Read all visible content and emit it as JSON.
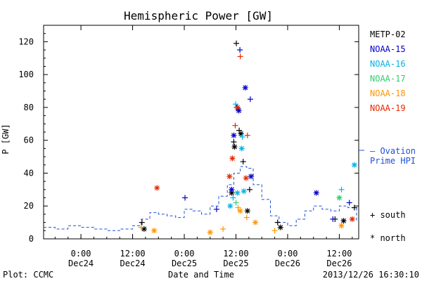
{
  "chart_data": {
    "type": "scatter",
    "title": "Hemispheric Power [GW]",
    "ylabel": "P [GW]",
    "xlabel": "Date and Time",
    "ylim": [
      0,
      130
    ],
    "xlim": [
      "2013-12-23T15:20",
      "2013-12-26T16:30"
    ],
    "y_ticks": [
      0,
      20,
      40,
      60,
      80,
      100,
      120
    ],
    "x_ticks": [
      {
        "x": "2013-12-24T00:00",
        "time": "0:00",
        "date": "Dec24"
      },
      {
        "x": "2013-12-24T12:00",
        "time": "12:00",
        "date": "Dec24"
      },
      {
        "x": "2013-12-25T00:00",
        "time": "0:00",
        "date": "Dec25"
      },
      {
        "x": "2013-12-25T12:00",
        "time": "12:00",
        "date": "Dec25"
      },
      {
        "x": "2013-12-26T00:00",
        "time": "0:00",
        "date": "Dec26"
      },
      {
        "x": "2013-12-26T12:00",
        "time": "12:00",
        "date": "Dec26"
      }
    ],
    "legend": {
      "position": "right",
      "marker_south": "+ south",
      "marker_north": "* north"
    },
    "series": [
      {
        "name": "METP-02",
        "color": "#000000",
        "south": [
          [
            "2013-12-24T14:10",
            10
          ],
          [
            "2013-12-25T11:30",
            59
          ],
          [
            "2013-12-25T12:05",
            119
          ],
          [
            "2013-12-25T12:45",
            66
          ],
          [
            "2013-12-25T13:40",
            47
          ],
          [
            "2013-12-25T15:10",
            30
          ],
          [
            "2013-12-25T21:40",
            10
          ],
          [
            "2013-12-26T11:00",
            12
          ],
          [
            "2013-12-26T15:30",
            19
          ]
        ],
        "north": [
          [
            "2013-12-24T14:40",
            6
          ],
          [
            "2013-12-25T11:00",
            28
          ],
          [
            "2013-12-25T11:40",
            56
          ],
          [
            "2013-12-25T12:30",
            79
          ],
          [
            "2013-12-25T13:10",
            64
          ],
          [
            "2013-12-25T14:40",
            17
          ],
          [
            "2013-12-25T22:20",
            7
          ],
          [
            "2013-12-26T13:00",
            11
          ]
        ]
      },
      {
        "name": "NOAA-15",
        "color": "#0000c8",
        "south": [
          [
            "2013-12-25T00:10",
            25
          ],
          [
            "2013-12-25T07:30",
            18
          ],
          [
            "2013-12-25T12:10",
            80
          ],
          [
            "2013-12-25T12:55",
            115
          ],
          [
            "2013-12-25T15:20",
            85
          ],
          [
            "2013-12-26T10:30",
            12
          ],
          [
            "2013-12-26T14:20",
            22
          ]
        ],
        "north": [
          [
            "2013-12-25T11:00",
            30
          ],
          [
            "2013-12-25T11:30",
            63
          ],
          [
            "2013-12-25T12:40",
            78
          ],
          [
            "2013-12-25T14:10",
            92
          ],
          [
            "2013-12-25T15:30",
            38
          ],
          [
            "2013-12-26T06:40",
            28
          ]
        ]
      },
      {
        "name": "NOAA-16",
        "color": "#00b4e6",
        "south": [
          [
            "2013-12-25T11:20",
            25
          ],
          [
            "2013-12-25T11:55",
            82
          ],
          [
            "2013-12-25T13:30",
            62
          ],
          [
            "2013-12-26T12:30",
            30
          ]
        ],
        "north": [
          [
            "2013-12-25T10:40",
            20
          ],
          [
            "2013-12-25T12:20",
            28
          ],
          [
            "2013-12-25T13:20",
            55
          ],
          [
            "2013-12-25T13:50",
            29
          ],
          [
            "2013-12-26T15:30",
            45
          ]
        ]
      },
      {
        "name": "NOAA-17",
        "color": "#32cd6e",
        "south": [
          [
            "2013-12-25T12:00",
            22
          ]
        ],
        "north": [
          [
            "2013-12-26T12:00",
            25
          ]
        ]
      },
      {
        "name": "NOAA-18",
        "color": "#ff9600",
        "south": [
          [
            "2013-12-24T14:00",
            7
          ],
          [
            "2013-12-25T09:00",
            6
          ],
          [
            "2013-12-25T12:30",
            19
          ],
          [
            "2013-12-25T14:30",
            13
          ],
          [
            "2013-12-25T21:00",
            5
          ]
        ],
        "north": [
          [
            "2013-12-24T17:00",
            5
          ],
          [
            "2013-12-25T06:00",
            4
          ],
          [
            "2013-12-25T13:00",
            17
          ],
          [
            "2013-12-25T16:30",
            10
          ],
          [
            "2013-12-26T12:30",
            8
          ]
        ]
      },
      {
        "name": "NOAA-19",
        "color": "#e62800",
        "south": [
          [
            "2013-12-25T11:50",
            69
          ],
          [
            "2013-12-25T13:00",
            111
          ],
          [
            "2013-12-25T14:40",
            63
          ]
        ],
        "north": [
          [
            "2013-12-24T17:40",
            31
          ],
          [
            "2013-12-25T10:30",
            38
          ],
          [
            "2013-12-25T11:10",
            49
          ],
          [
            "2013-12-25T12:20",
            80
          ],
          [
            "2013-12-25T14:20",
            37
          ],
          [
            "2013-12-26T15:00",
            12
          ]
        ]
      }
    ],
    "model": {
      "name": "Ovation Prime HPI",
      "label_lines": [
        "— Ovation",
        "Prime HPI"
      ],
      "color": "#1e50dc",
      "steps": [
        [
          "2013-12-23T15:20",
          7
        ],
        [
          "2013-12-23T18:00",
          6
        ],
        [
          "2013-12-23T21:00",
          8
        ],
        [
          "2013-12-24T00:00",
          7
        ],
        [
          "2013-12-24T03:00",
          6
        ],
        [
          "2013-12-24T06:00",
          5
        ],
        [
          "2013-12-24T09:00",
          6
        ],
        [
          "2013-12-24T12:00",
          8
        ],
        [
          "2013-12-24T14:00",
          12
        ],
        [
          "2013-12-24T16:00",
          16
        ],
        [
          "2013-12-24T18:00",
          15
        ],
        [
          "2013-12-24T20:00",
          14
        ],
        [
          "2013-12-24T22:00",
          13
        ],
        [
          "2013-12-25T00:00",
          18
        ],
        [
          "2013-12-25T02:00",
          17
        ],
        [
          "2013-12-25T04:00",
          15
        ],
        [
          "2013-12-25T06:00",
          20
        ],
        [
          "2013-12-25T08:00",
          26
        ],
        [
          "2013-12-25T10:00",
          33
        ],
        [
          "2013-12-25T11:30",
          40
        ],
        [
          "2013-12-25T13:00",
          44
        ],
        [
          "2013-12-25T14:30",
          43
        ],
        [
          "2013-12-25T16:00",
          33
        ],
        [
          "2013-12-25T18:00",
          24
        ],
        [
          "2013-12-25T20:00",
          14
        ],
        [
          "2013-12-25T22:00",
          10
        ],
        [
          "2013-12-26T00:00",
          8
        ],
        [
          "2013-12-26T02:00",
          12
        ],
        [
          "2013-12-26T04:00",
          17
        ],
        [
          "2013-12-26T06:00",
          20
        ],
        [
          "2013-12-26T08:00",
          18
        ],
        [
          "2013-12-26T10:00",
          17
        ],
        [
          "2013-12-26T12:00",
          20
        ],
        [
          "2013-12-26T14:00",
          19
        ],
        [
          "2013-12-26T16:00",
          11
        ],
        [
          "2013-12-26T16:30",
          11
        ]
      ]
    }
  },
  "footer": {
    "plot_credit": "Plot: CCMC",
    "timestamp": "2013/12/26 16:30:10"
  }
}
